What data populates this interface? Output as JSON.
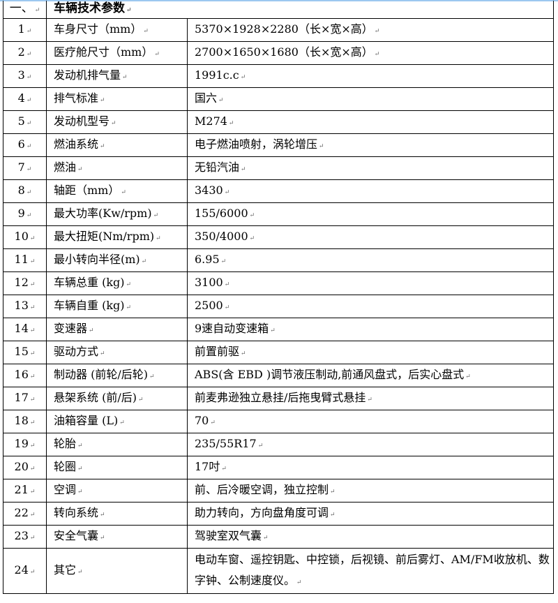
{
  "section": {
    "number": "一、",
    "title": "车辆技术参数"
  },
  "rows": [
    {
      "no": "1",
      "item": "车身尺寸（mm）",
      "value": "5370×1928×2280（长×宽×高）"
    },
    {
      "no": "2",
      "item": "医疗舱尺寸（mm）",
      "value": "2700×1650×1680（长×宽×高）"
    },
    {
      "no": "3",
      "item": "发动机排气量",
      "value": "1991c.c"
    },
    {
      "no": "4",
      "item": "排气标准",
      "value": "国六"
    },
    {
      "no": "5",
      "item": "发动机型号",
      "value": "M274"
    },
    {
      "no": "6",
      "item": "燃油系统",
      "value": "电子燃油喷射，涡轮增压"
    },
    {
      "no": "7",
      "item": "燃油",
      "value": "无铅汽油"
    },
    {
      "no": "8",
      "item": "轴距（mm）",
      "value": "3430"
    },
    {
      "no": "9",
      "item": "最大功率(Kw/rpm)",
      "value": "155/6000"
    },
    {
      "no": "10",
      "item": "最大扭矩(Nm/rpm)",
      "value": "350/4000"
    },
    {
      "no": "11",
      "item": "最小转向半径(m)",
      "value": "6.95"
    },
    {
      "no": "12",
      "item": "车辆总重 (kg)",
      "value": "3100"
    },
    {
      "no": "13",
      "item": "车辆自重 (kg)",
      "value": "2500"
    },
    {
      "no": "14",
      "item": "变速器",
      "value": "9速自动变速箱"
    },
    {
      "no": "15",
      "item": "驱动方式",
      "value": "前置前驱"
    },
    {
      "no": "16",
      "item": "制动器 (前轮/后轮)",
      "value": "ABS(含 EBD )调节液压制动,前通风盘式，后实心盘式"
    },
    {
      "no": "17",
      "item": "悬架系统 (前/后)",
      "value": "前麦弗逊独立悬挂/后拖曳臂式悬挂"
    },
    {
      "no": "18",
      "item": "油箱容量 (L)",
      "value": "70"
    },
    {
      "no": "19",
      "item": "轮胎",
      "value": "235/55R17"
    },
    {
      "no": "20",
      "item": "轮圈",
      "value": "17吋"
    },
    {
      "no": "21",
      "item": "空调",
      "value": "前、后冷暖空调，独立控制"
    },
    {
      "no": "22",
      "item": "转向系统",
      "value": "助力转向，方向盘角度可调"
    },
    {
      "no": "23",
      "item": "安全气囊",
      "value": "驾驶室双气囊"
    },
    {
      "no": "24",
      "item": "其它",
      "value": "电动车窗、遥控钥匙、中控锁，后视镜、前后雾灯、AM/FM收放机、数字钟、公制速度仪。"
    }
  ]
}
